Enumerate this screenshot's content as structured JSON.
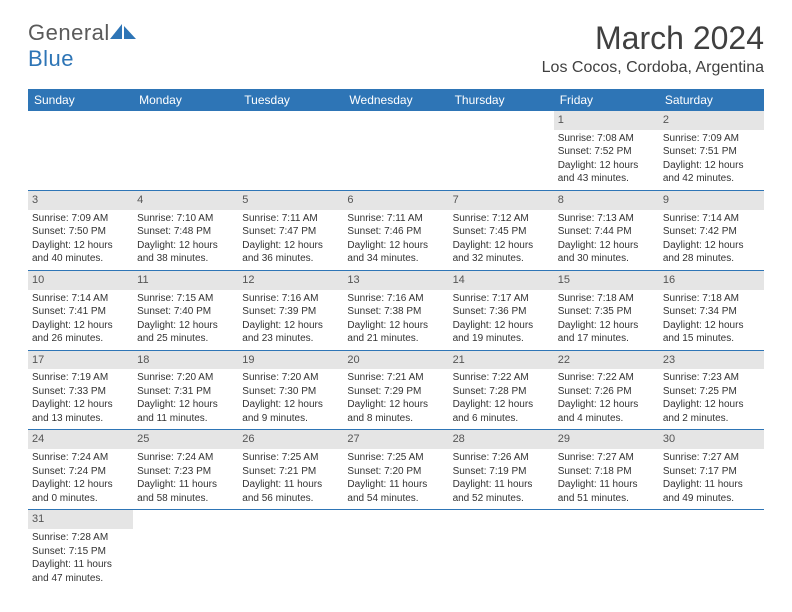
{
  "brand": {
    "part1": "General",
    "part2": "Blue"
  },
  "title": "March 2024",
  "location": "Los Cocos, Cordoba, Argentina",
  "colors": {
    "header_bg": "#2e75b6",
    "header_fg": "#ffffff",
    "daynum_bg": "#e5e5e5",
    "border": "#2e75b6",
    "text": "#333333"
  },
  "weekdays": [
    "Sunday",
    "Monday",
    "Tuesday",
    "Wednesday",
    "Thursday",
    "Friday",
    "Saturday"
  ],
  "weeks": [
    [
      null,
      null,
      null,
      null,
      null,
      {
        "n": "1",
        "sr": "Sunrise: 7:08 AM",
        "ss": "Sunset: 7:52 PM",
        "dl": "Daylight: 12 hours and 43 minutes."
      },
      {
        "n": "2",
        "sr": "Sunrise: 7:09 AM",
        "ss": "Sunset: 7:51 PM",
        "dl": "Daylight: 12 hours and 42 minutes."
      }
    ],
    [
      {
        "n": "3",
        "sr": "Sunrise: 7:09 AM",
        "ss": "Sunset: 7:50 PM",
        "dl": "Daylight: 12 hours and 40 minutes."
      },
      {
        "n": "4",
        "sr": "Sunrise: 7:10 AM",
        "ss": "Sunset: 7:48 PM",
        "dl": "Daylight: 12 hours and 38 minutes."
      },
      {
        "n": "5",
        "sr": "Sunrise: 7:11 AM",
        "ss": "Sunset: 7:47 PM",
        "dl": "Daylight: 12 hours and 36 minutes."
      },
      {
        "n": "6",
        "sr": "Sunrise: 7:11 AM",
        "ss": "Sunset: 7:46 PM",
        "dl": "Daylight: 12 hours and 34 minutes."
      },
      {
        "n": "7",
        "sr": "Sunrise: 7:12 AM",
        "ss": "Sunset: 7:45 PM",
        "dl": "Daylight: 12 hours and 32 minutes."
      },
      {
        "n": "8",
        "sr": "Sunrise: 7:13 AM",
        "ss": "Sunset: 7:44 PM",
        "dl": "Daylight: 12 hours and 30 minutes."
      },
      {
        "n": "9",
        "sr": "Sunrise: 7:14 AM",
        "ss": "Sunset: 7:42 PM",
        "dl": "Daylight: 12 hours and 28 minutes."
      }
    ],
    [
      {
        "n": "10",
        "sr": "Sunrise: 7:14 AM",
        "ss": "Sunset: 7:41 PM",
        "dl": "Daylight: 12 hours and 26 minutes."
      },
      {
        "n": "11",
        "sr": "Sunrise: 7:15 AM",
        "ss": "Sunset: 7:40 PM",
        "dl": "Daylight: 12 hours and 25 minutes."
      },
      {
        "n": "12",
        "sr": "Sunrise: 7:16 AM",
        "ss": "Sunset: 7:39 PM",
        "dl": "Daylight: 12 hours and 23 minutes."
      },
      {
        "n": "13",
        "sr": "Sunrise: 7:16 AM",
        "ss": "Sunset: 7:38 PM",
        "dl": "Daylight: 12 hours and 21 minutes."
      },
      {
        "n": "14",
        "sr": "Sunrise: 7:17 AM",
        "ss": "Sunset: 7:36 PM",
        "dl": "Daylight: 12 hours and 19 minutes."
      },
      {
        "n": "15",
        "sr": "Sunrise: 7:18 AM",
        "ss": "Sunset: 7:35 PM",
        "dl": "Daylight: 12 hours and 17 minutes."
      },
      {
        "n": "16",
        "sr": "Sunrise: 7:18 AM",
        "ss": "Sunset: 7:34 PM",
        "dl": "Daylight: 12 hours and 15 minutes."
      }
    ],
    [
      {
        "n": "17",
        "sr": "Sunrise: 7:19 AM",
        "ss": "Sunset: 7:33 PM",
        "dl": "Daylight: 12 hours and 13 minutes."
      },
      {
        "n": "18",
        "sr": "Sunrise: 7:20 AM",
        "ss": "Sunset: 7:31 PM",
        "dl": "Daylight: 12 hours and 11 minutes."
      },
      {
        "n": "19",
        "sr": "Sunrise: 7:20 AM",
        "ss": "Sunset: 7:30 PM",
        "dl": "Daylight: 12 hours and 9 minutes."
      },
      {
        "n": "20",
        "sr": "Sunrise: 7:21 AM",
        "ss": "Sunset: 7:29 PM",
        "dl": "Daylight: 12 hours and 8 minutes."
      },
      {
        "n": "21",
        "sr": "Sunrise: 7:22 AM",
        "ss": "Sunset: 7:28 PM",
        "dl": "Daylight: 12 hours and 6 minutes."
      },
      {
        "n": "22",
        "sr": "Sunrise: 7:22 AM",
        "ss": "Sunset: 7:26 PM",
        "dl": "Daylight: 12 hours and 4 minutes."
      },
      {
        "n": "23",
        "sr": "Sunrise: 7:23 AM",
        "ss": "Sunset: 7:25 PM",
        "dl": "Daylight: 12 hours and 2 minutes."
      }
    ],
    [
      {
        "n": "24",
        "sr": "Sunrise: 7:24 AM",
        "ss": "Sunset: 7:24 PM",
        "dl": "Daylight: 12 hours and 0 minutes."
      },
      {
        "n": "25",
        "sr": "Sunrise: 7:24 AM",
        "ss": "Sunset: 7:23 PM",
        "dl": "Daylight: 11 hours and 58 minutes."
      },
      {
        "n": "26",
        "sr": "Sunrise: 7:25 AM",
        "ss": "Sunset: 7:21 PM",
        "dl": "Daylight: 11 hours and 56 minutes."
      },
      {
        "n": "27",
        "sr": "Sunrise: 7:25 AM",
        "ss": "Sunset: 7:20 PM",
        "dl": "Daylight: 11 hours and 54 minutes."
      },
      {
        "n": "28",
        "sr": "Sunrise: 7:26 AM",
        "ss": "Sunset: 7:19 PM",
        "dl": "Daylight: 11 hours and 52 minutes."
      },
      {
        "n": "29",
        "sr": "Sunrise: 7:27 AM",
        "ss": "Sunset: 7:18 PM",
        "dl": "Daylight: 11 hours and 51 minutes."
      },
      {
        "n": "30",
        "sr": "Sunrise: 7:27 AM",
        "ss": "Sunset: 7:17 PM",
        "dl": "Daylight: 11 hours and 49 minutes."
      }
    ],
    [
      {
        "n": "31",
        "sr": "Sunrise: 7:28 AM",
        "ss": "Sunset: 7:15 PM",
        "dl": "Daylight: 11 hours and 47 minutes."
      },
      null,
      null,
      null,
      null,
      null,
      null
    ]
  ]
}
